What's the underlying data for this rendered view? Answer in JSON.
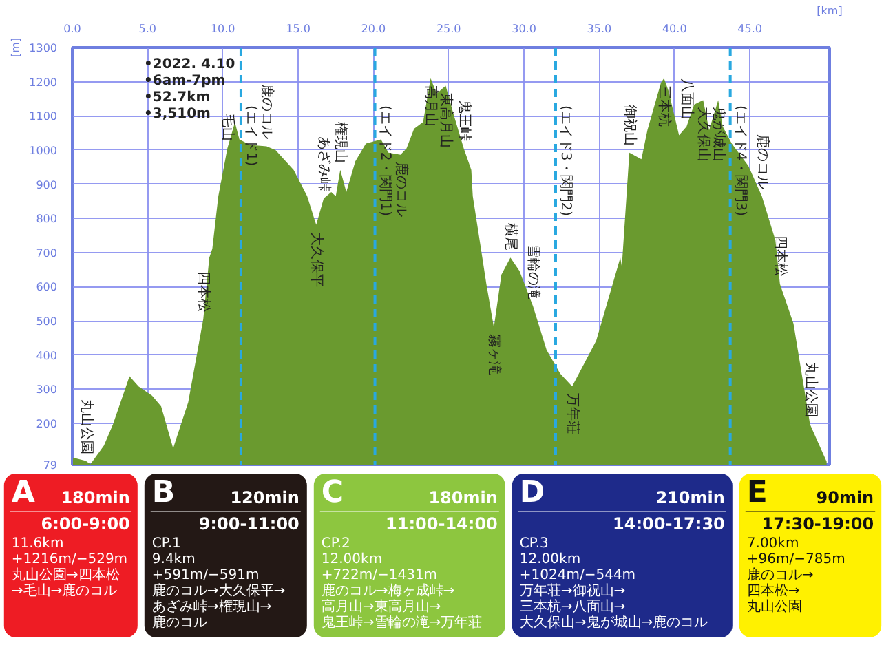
{
  "chart_data": [
    {
      "type": "area",
      "xlabel": "[km]",
      "ylabel": "[m]",
      "x": [
        0,
        0.9,
        1.2,
        2.1,
        2.7,
        3.8,
        4.4,
        5.3,
        5.9,
        6.7,
        7.7,
        8.7,
        9.1,
        9.3,
        9.7,
        10.3,
        10.8,
        11.1,
        11.8,
        12.9,
        13.5,
        14.7,
        15.6,
        16.2,
        16.7,
        17.2,
        17.5,
        17.8,
        18.2,
        18.8,
        19.5,
        20.5,
        21.0,
        21.8,
        22.2,
        22.7,
        23.3,
        23.8,
        24.2,
        24.8,
        25.3,
        26.0,
        26.5,
        26.6,
        27.1,
        27.5,
        28.0,
        28.5,
        29.1,
        29.7,
        30.6,
        31.5,
        32.4,
        33.2,
        34.8,
        36.4,
        36.5,
        37.0,
        37.8,
        38.2,
        39.1,
        39.3,
        39.6,
        40.3,
        40.8,
        41.3,
        41.9,
        42.3,
        42.9,
        43.2,
        43.8,
        44.9,
        45.8,
        46.7,
        47.0,
        47.9,
        49.0,
        50.1
      ],
      "series": [
        {
          "color": "#6a9a2f",
          "values": [
            100,
            90,
            80,
            135,
            197,
            338,
            308,
            281,
            250,
            127,
            262,
            505,
            685,
            711,
            865,
            1005,
            1081,
            1031,
            1015,
            1011,
            1000,
            942,
            865,
            781,
            858,
            877,
            865,
            942,
            877,
            967,
            1019,
            1031,
            992,
            986,
            1005,
            1062,
            1082,
            1210,
            1165,
            1188,
            1108,
            1005,
            942,
            865,
            723,
            608,
            481,
            635,
            685,
            646,
            543,
            415,
            346,
            308,
            442,
            685,
            659,
            992,
            973,
            1058,
            1197,
            1210,
            1173,
            1043,
            1069,
            1133,
            1146,
            1058,
            1146,
            1069,
            1019,
            954,
            865,
            736,
            608,
            492,
            197,
            88
          ]
        }
      ],
      "xlim": [
        0,
        50.3
      ],
      "ylim": [
        79,
        1300
      ],
      "xticks": [
        {
          "value": 0,
          "label": "0.0"
        },
        {
          "value": 5,
          "label": "5.0"
        },
        {
          "value": 10,
          "label": "10.0"
        },
        {
          "value": 15,
          "label": "15.0"
        },
        {
          "value": 20,
          "label": "20.0"
        },
        {
          "value": 25,
          "label": "25.0"
        },
        {
          "value": 30,
          "label": "30.0"
        },
        {
          "value": 35,
          "label": "35.0"
        },
        {
          "value": 40,
          "label": "40.0"
        },
        {
          "value": 45,
          "label": "45.0"
        }
      ],
      "yticks": [
        79,
        200,
        300,
        400,
        500,
        600,
        700,
        800,
        900,
        1000,
        1100,
        1200,
        1300
      ],
      "grid": true,
      "ref_lines": [
        {
          "axis": "x",
          "value": 11.2,
          "label": "(エイド1)",
          "color": "#29a8e0",
          "line_style": "dashed"
        },
        {
          "axis": "x",
          "value": 20.1,
          "label": "(エイド2・関門1)",
          "color": "#29a8e0",
          "line_style": "dashed"
        },
        {
          "axis": "x",
          "value": 32.1,
          "label": "(エイド3・関門2)",
          "color": "#29a8e0",
          "line_style": "dashed"
        },
        {
          "axis": "x",
          "value": 43.7,
          "label": "(エイド4・関門3)",
          "color": "#29a8e0",
          "line_style": "dashed"
        }
      ],
      "annotations": [
        "•2022. 4.10",
        "•6am-7pm",
        "•52.7km",
        "•3,510m",
        {
          "text": "丸山公園",
          "x": 0.9,
          "y": 90
        },
        {
          "text": "四本松",
          "x": 8.7,
          "y": 505
        },
        {
          "text": "毛山",
          "x": 10.3,
          "y": 1005
        },
        {
          "text": "鹿のコル",
          "x": 12.9,
          "y": 1011
        },
        {
          "text": "大久保平",
          "x": 16.2,
          "y": 781
        },
        {
          "text": "あざみ峠",
          "x": 16.7,
          "y": 858
        },
        {
          "text": "権現山",
          "x": 17.8,
          "y": 942
        },
        {
          "text": "鹿のコル",
          "x": 21.8,
          "y": 986
        },
        {
          "text": "高月山",
          "x": 23.8,
          "y": 1210
        },
        {
          "text": "東高月山",
          "x": 24.8,
          "y": 1188
        },
        {
          "text": "鬼王峠",
          "x": 26.0,
          "y": 1005
        },
        {
          "text": "霧ヶ滝",
          "x": 28.0,
          "y": 481
        },
        {
          "text": "横尾",
          "x": 29.1,
          "y": 685
        },
        {
          "text": "雪輪の滝",
          "x": 30.6,
          "y": 543
        },
        {
          "text": "万年荘",
          "x": 33.2,
          "y": 308
        },
        {
          "text": "御祝山",
          "x": 37.0,
          "y": 992
        },
        {
          "text": "三本杭",
          "x": 39.3,
          "y": 1210
        },
        {
          "text": "八面山",
          "x": 40.8,
          "y": 1069
        },
        {
          "text": "大久保山",
          "x": 41.9,
          "y": 1146
        },
        {
          "text": "鬼が城山",
          "x": 42.9,
          "y": 1146
        },
        {
          "text": "鹿のコル",
          "x": 45.8,
          "y": 865
        },
        {
          "text": "四本松",
          "x": 47.0,
          "y": 608
        },
        {
          "text": "丸山公園",
          "x": 49.0,
          "y": 197
        }
      ]
    },
    {
      "type": "other",
      "categories": [
        "A",
        "B",
        "C",
        "D",
        "E"
      ],
      "colors": [
        "#ee1c24",
        "#231815",
        "#8dc63f",
        "#1e2a8a",
        "#fff100"
      ],
      "annotations": [
        {
          "text": "180min",
          "x": "A"
        },
        {
          "text": "6:00-9:00",
          "x": "A"
        },
        {
          "text": "11.6km",
          "x": "A"
        },
        {
          "text": "+1216m/−529m",
          "x": "A"
        },
        {
          "text": "丸山公園→四本松",
          "x": "A"
        },
        {
          "text": "→毛山→鹿のコル",
          "x": "A"
        },
        {
          "text": "120min",
          "x": "B"
        },
        {
          "text": "9:00-11:00",
          "x": "B"
        },
        {
          "text": "CP.1",
          "x": "B"
        },
        {
          "text": "9.4km",
          "x": "B"
        },
        {
          "text": "+591m/−591m",
          "x": "B"
        },
        {
          "text": "鹿のコル→大久保平→",
          "x": "B"
        },
        {
          "text": "あざみ峠→権現山→",
          "x": "B"
        },
        {
          "text": "鹿のコル",
          "x": "B"
        },
        {
          "text": "180min",
          "x": "C"
        },
        {
          "text": "11:00-14:00",
          "x": "C"
        },
        {
          "text": "CP.2",
          "x": "C"
        },
        {
          "text": "12.00km",
          "x": "C"
        },
        {
          "text": "+722m/−1431m",
          "x": "C"
        },
        {
          "text": "鹿のコル→梅ヶ成峠→",
          "x": "C"
        },
        {
          "text": "高月山→東高月山→",
          "x": "C"
        },
        {
          "text": "鬼王峠→雪輪の滝→万年荘",
          "x": "C"
        },
        {
          "text": "210min",
          "x": "D"
        },
        {
          "text": "14:00-17:30",
          "x": "D"
        },
        {
          "text": "CP.3",
          "x": "D"
        },
        {
          "text": "12.00km",
          "x": "D"
        },
        {
          "text": "+1024m/−544m",
          "x": "D"
        },
        {
          "text": "万年荘→御祝山→",
          "x": "D"
        },
        {
          "text": "三本杭→八面山→",
          "x": "D"
        },
        {
          "text": "大久保山→鬼が城山→鹿のコル",
          "x": "D"
        },
        {
          "text": "90min",
          "x": "E"
        },
        {
          "text": "17:30-19:00",
          "x": "E"
        },
        {
          "text": "7.00km",
          "x": "E"
        },
        {
          "text": "+96m/−785m",
          "x": "E"
        },
        {
          "text": "鹿のコル→",
          "x": "E"
        },
        {
          "text": "四本松→",
          "x": "E"
        },
        {
          "text": "丸山公園",
          "x": "E"
        }
      ]
    }
  ]
}
